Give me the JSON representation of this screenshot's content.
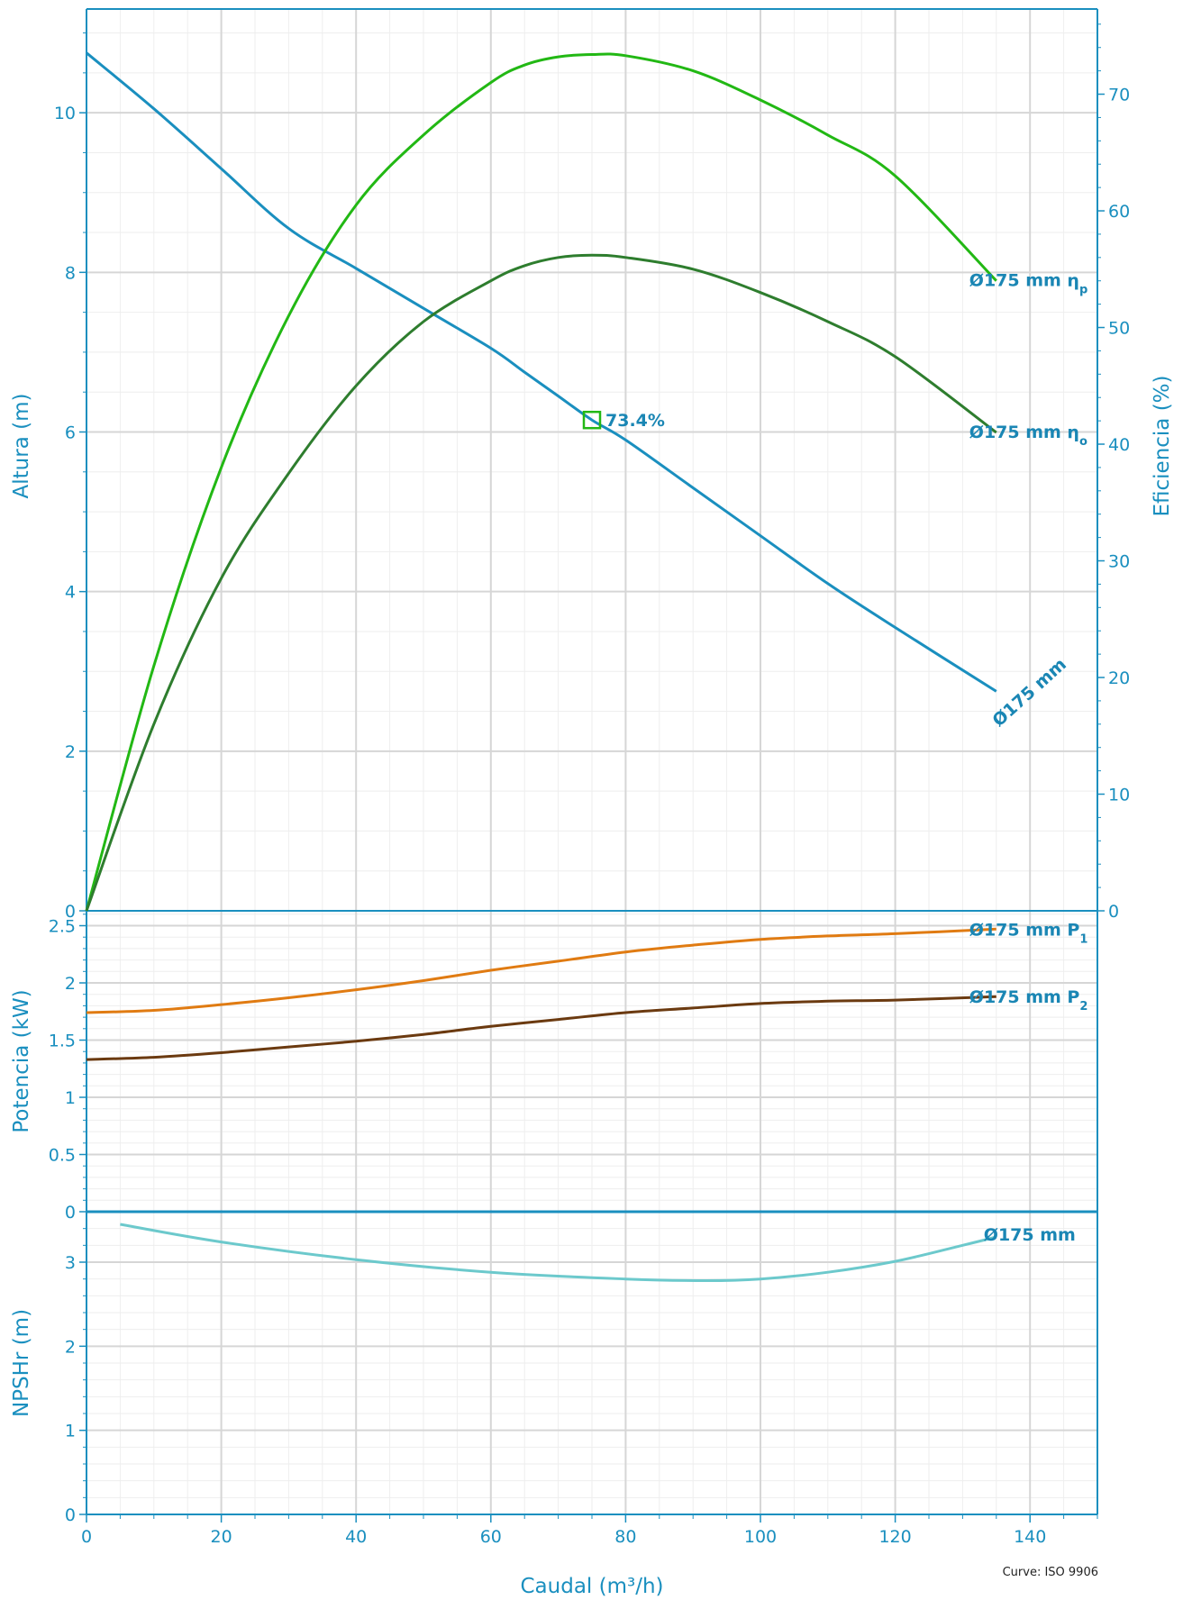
{
  "chart_data": {
    "type": "line",
    "footer_note": "Curve: ISO 9906",
    "xlabel": "Caudal (m³/h)",
    "xlim": [
      0,
      150
    ],
    "xticks": [
      0,
      20,
      40,
      60,
      80,
      100,
      120,
      140
    ],
    "colors": {
      "axis": "#1a8fbf",
      "head": "#1a8fbf",
      "eta_p": "#22b814",
      "eta_o": "#2e7d2e",
      "p1": "#e07b12",
      "p2": "#6b3a10",
      "npsh": "#6cc9cc"
    },
    "panels": [
      {
        "id": "head",
        "ylabel": "Altura (m)",
        "ylim": [
          0,
          11.3
        ],
        "yticks": [
          0,
          2,
          4,
          6,
          8,
          10
        ],
        "y2label": "Eficiencia (%)",
        "y2lim": [
          0,
          77.3
        ],
        "y2ticks": [
          0,
          10,
          20,
          30,
          40,
          50,
          60,
          70
        ],
        "series": [
          {
            "name": "Ø175 mm",
            "axis": "y",
            "x": [
              0,
              10,
              20,
              30,
              40,
              50,
              60,
              65,
              70,
              75,
              80,
              90,
              100,
              110,
              120,
              135
            ],
            "y": [
              10.75,
              10.05,
              9.3,
              8.55,
              8.05,
              7.55,
              7.05,
              6.75,
              6.45,
              6.15,
              5.9,
              5.3,
              4.7,
              4.1,
              3.55,
              2.75
            ]
          },
          {
            "name": "Ø175 mm  η",
            "sub": "p",
            "axis": "y2",
            "x": [
              0,
              10,
              20,
              30,
              40,
              50,
              60,
              65,
              70,
              75,
              80,
              90,
              100,
              110,
              120,
              135
            ],
            "y": [
              0,
              21,
              38,
              51,
              60.5,
              66.5,
              71,
              72.5,
              73.2,
              73.4,
              73.3,
              72,
              69.5,
              66.5,
              63,
              54
            ]
          },
          {
            "name": "Ø175 mm  η",
            "sub": "o",
            "axis": "y2",
            "x": [
              0,
              10,
              20,
              30,
              40,
              50,
              60,
              65,
              70,
              75,
              80,
              90,
              100,
              110,
              120,
              135
            ],
            "y": [
              0,
              16,
              28.5,
              37.5,
              45,
              50.5,
              54,
              55.3,
              56,
              56.2,
              56,
              55,
              53,
              50.5,
              47.5,
              41
            ]
          }
        ],
        "marker": {
          "x": 75,
          "y": 6.15,
          "label": "73.4%"
        }
      },
      {
        "id": "power",
        "ylabel": "Potencia (kW)",
        "ylim": [
          0,
          2.63
        ],
        "yticks": [
          0,
          0.5,
          1,
          1.5,
          2,
          2.5
        ],
        "ytick_labels": [
          "0",
          "0.5",
          "1",
          "1.5",
          "2",
          "2.5"
        ],
        "series": [
          {
            "name": "Ø175 mm  P",
            "sub": "1",
            "x": [
              0,
              10,
              20,
              30,
              40,
              50,
              60,
              70,
              80,
              90,
              100,
              110,
              120,
              135
            ],
            "y": [
              1.74,
              1.76,
              1.81,
              1.87,
              1.94,
              2.02,
              2.11,
              2.19,
              2.27,
              2.33,
              2.38,
              2.41,
              2.43,
              2.47
            ]
          },
          {
            "name": "Ø175 mm  P",
            "sub": "2",
            "x": [
              0,
              10,
              20,
              30,
              40,
              50,
              60,
              70,
              80,
              90,
              100,
              110,
              120,
              135
            ],
            "y": [
              1.33,
              1.35,
              1.39,
              1.44,
              1.49,
              1.55,
              1.62,
              1.68,
              1.74,
              1.78,
              1.82,
              1.84,
              1.85,
              1.88
            ]
          }
        ]
      },
      {
        "id": "npsh",
        "ylabel": "NPSHr (m)",
        "ylim": [
          0,
          3.6
        ],
        "yticks": [
          0,
          1,
          2,
          3
        ],
        "series": [
          {
            "name": "Ø175 mm",
            "x": [
              5,
              20,
              40,
              60,
              80,
              92,
              100,
              110,
              120,
              130,
              135
            ],
            "y": [
              3.45,
              3.24,
              3.03,
              2.88,
              2.8,
              2.78,
              2.8,
              2.88,
              3.01,
              3.2,
              3.3
            ]
          }
        ]
      }
    ]
  }
}
